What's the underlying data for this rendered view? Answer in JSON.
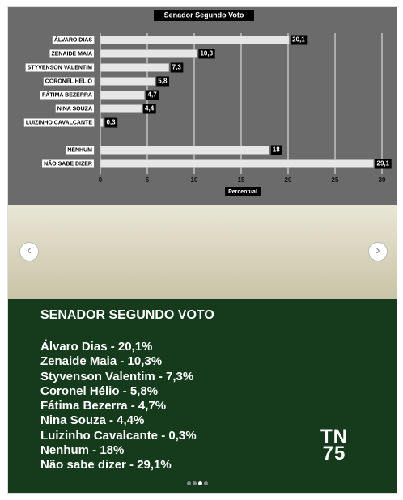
{
  "chart_data": {
    "type": "bar",
    "orientation": "horizontal",
    "title": "Senador Segundo Voto",
    "categories": [
      "ÁLVARO DIAS",
      "ZENAIDE MAIA",
      "STYVENSON VALENTIM",
      "CORONEL HÉLIO",
      "FÁTIMA BEZERRA",
      "NINA SOUZA",
      "LUIZINHO CAVALCANTE",
      null,
      "NENHUM",
      "NÃO SABE DIZER"
    ],
    "values": [
      20.1,
      10.3,
      7.3,
      5.8,
      4.7,
      4.4,
      0.3,
      null,
      18,
      29.1
    ],
    "value_labels": [
      "20,1",
      "10,3",
      "7,3",
      "5,8",
      "4,7",
      "4,4",
      "0,3",
      null,
      "18",
      "29,1"
    ],
    "color": "#e6e6e6",
    "xlim": [
      0,
      30
    ],
    "xticks": [
      0,
      5,
      10,
      15,
      20,
      25,
      30
    ],
    "xlabel": "Percentual",
    "grid": true
  },
  "post": {
    "heading": "SENADOR SEGUNDO VOTO",
    "lines": [
      "Álvaro Dias - 20,1%",
      "Zenaide Maia - 10,3%",
      "Styvenson Valentim - 7,3%",
      "Coronel Hélio - 5,8%",
      "Fátima Bezerra - 4,7%",
      "Nina Souza - 4,4%",
      "Luizinho Cavalcante - 0,3%",
      "Nenhum - 18%",
      "Não sabe dizer - 29,1%"
    ],
    "logo_top": "TN",
    "logo_bottom": "75"
  }
}
